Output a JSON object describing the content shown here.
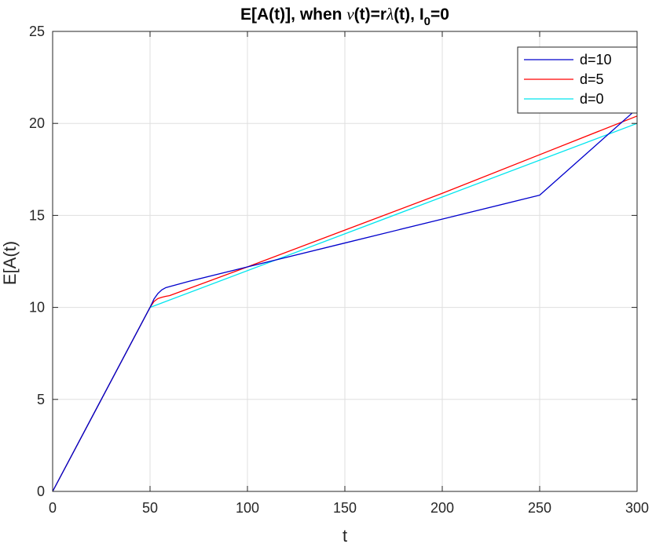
{
  "chart_data": {
    "type": "line",
    "title": {
      "prefix": "E[A(t)], when ",
      "nu": "ν",
      "mid": "(t)=r",
      "lambda": "λ",
      "mid2": "(t), I",
      "subscript": "0",
      "suffix": "=0"
    },
    "xlabel": "t",
    "ylabel": "E[A(t)",
    "xlim": [
      0,
      300
    ],
    "ylim": [
      0,
      25
    ],
    "xticks": [
      0,
      50,
      100,
      150,
      200,
      250,
      300
    ],
    "yticks": [
      0,
      5,
      10,
      15,
      20,
      25
    ],
    "grid": true,
    "legend_position": "top-right",
    "series": [
      {
        "name": "d=10",
        "color": "#0000cc",
        "points": [
          [
            0,
            0
          ],
          [
            50,
            10
          ],
          [
            52,
            10.45
          ],
          [
            54,
            10.75
          ],
          [
            56,
            10.95
          ],
          [
            58,
            11.07
          ],
          [
            60,
            11.13
          ],
          [
            70,
            11.42
          ],
          [
            100,
            12.2
          ],
          [
            150,
            13.5
          ],
          [
            200,
            14.8
          ],
          [
            250,
            16.1
          ],
          [
            300,
            20.8
          ]
        ]
      },
      {
        "name": "d=5",
        "color": "#ff0000",
        "points": [
          [
            0,
            0
          ],
          [
            50,
            10
          ],
          [
            52,
            10.32
          ],
          [
            54,
            10.48
          ],
          [
            56,
            10.55
          ],
          [
            58,
            10.6
          ],
          [
            60,
            10.64
          ],
          [
            100,
            12.2
          ],
          [
            150,
            14.2
          ],
          [
            200,
            16.2
          ],
          [
            250,
            18.3
          ],
          [
            300,
            20.4
          ]
        ]
      },
      {
        "name": "d=0",
        "color": "#00e5ee",
        "points": [
          [
            0,
            0
          ],
          [
            50,
            10
          ],
          [
            300,
            20
          ]
        ]
      }
    ]
  }
}
